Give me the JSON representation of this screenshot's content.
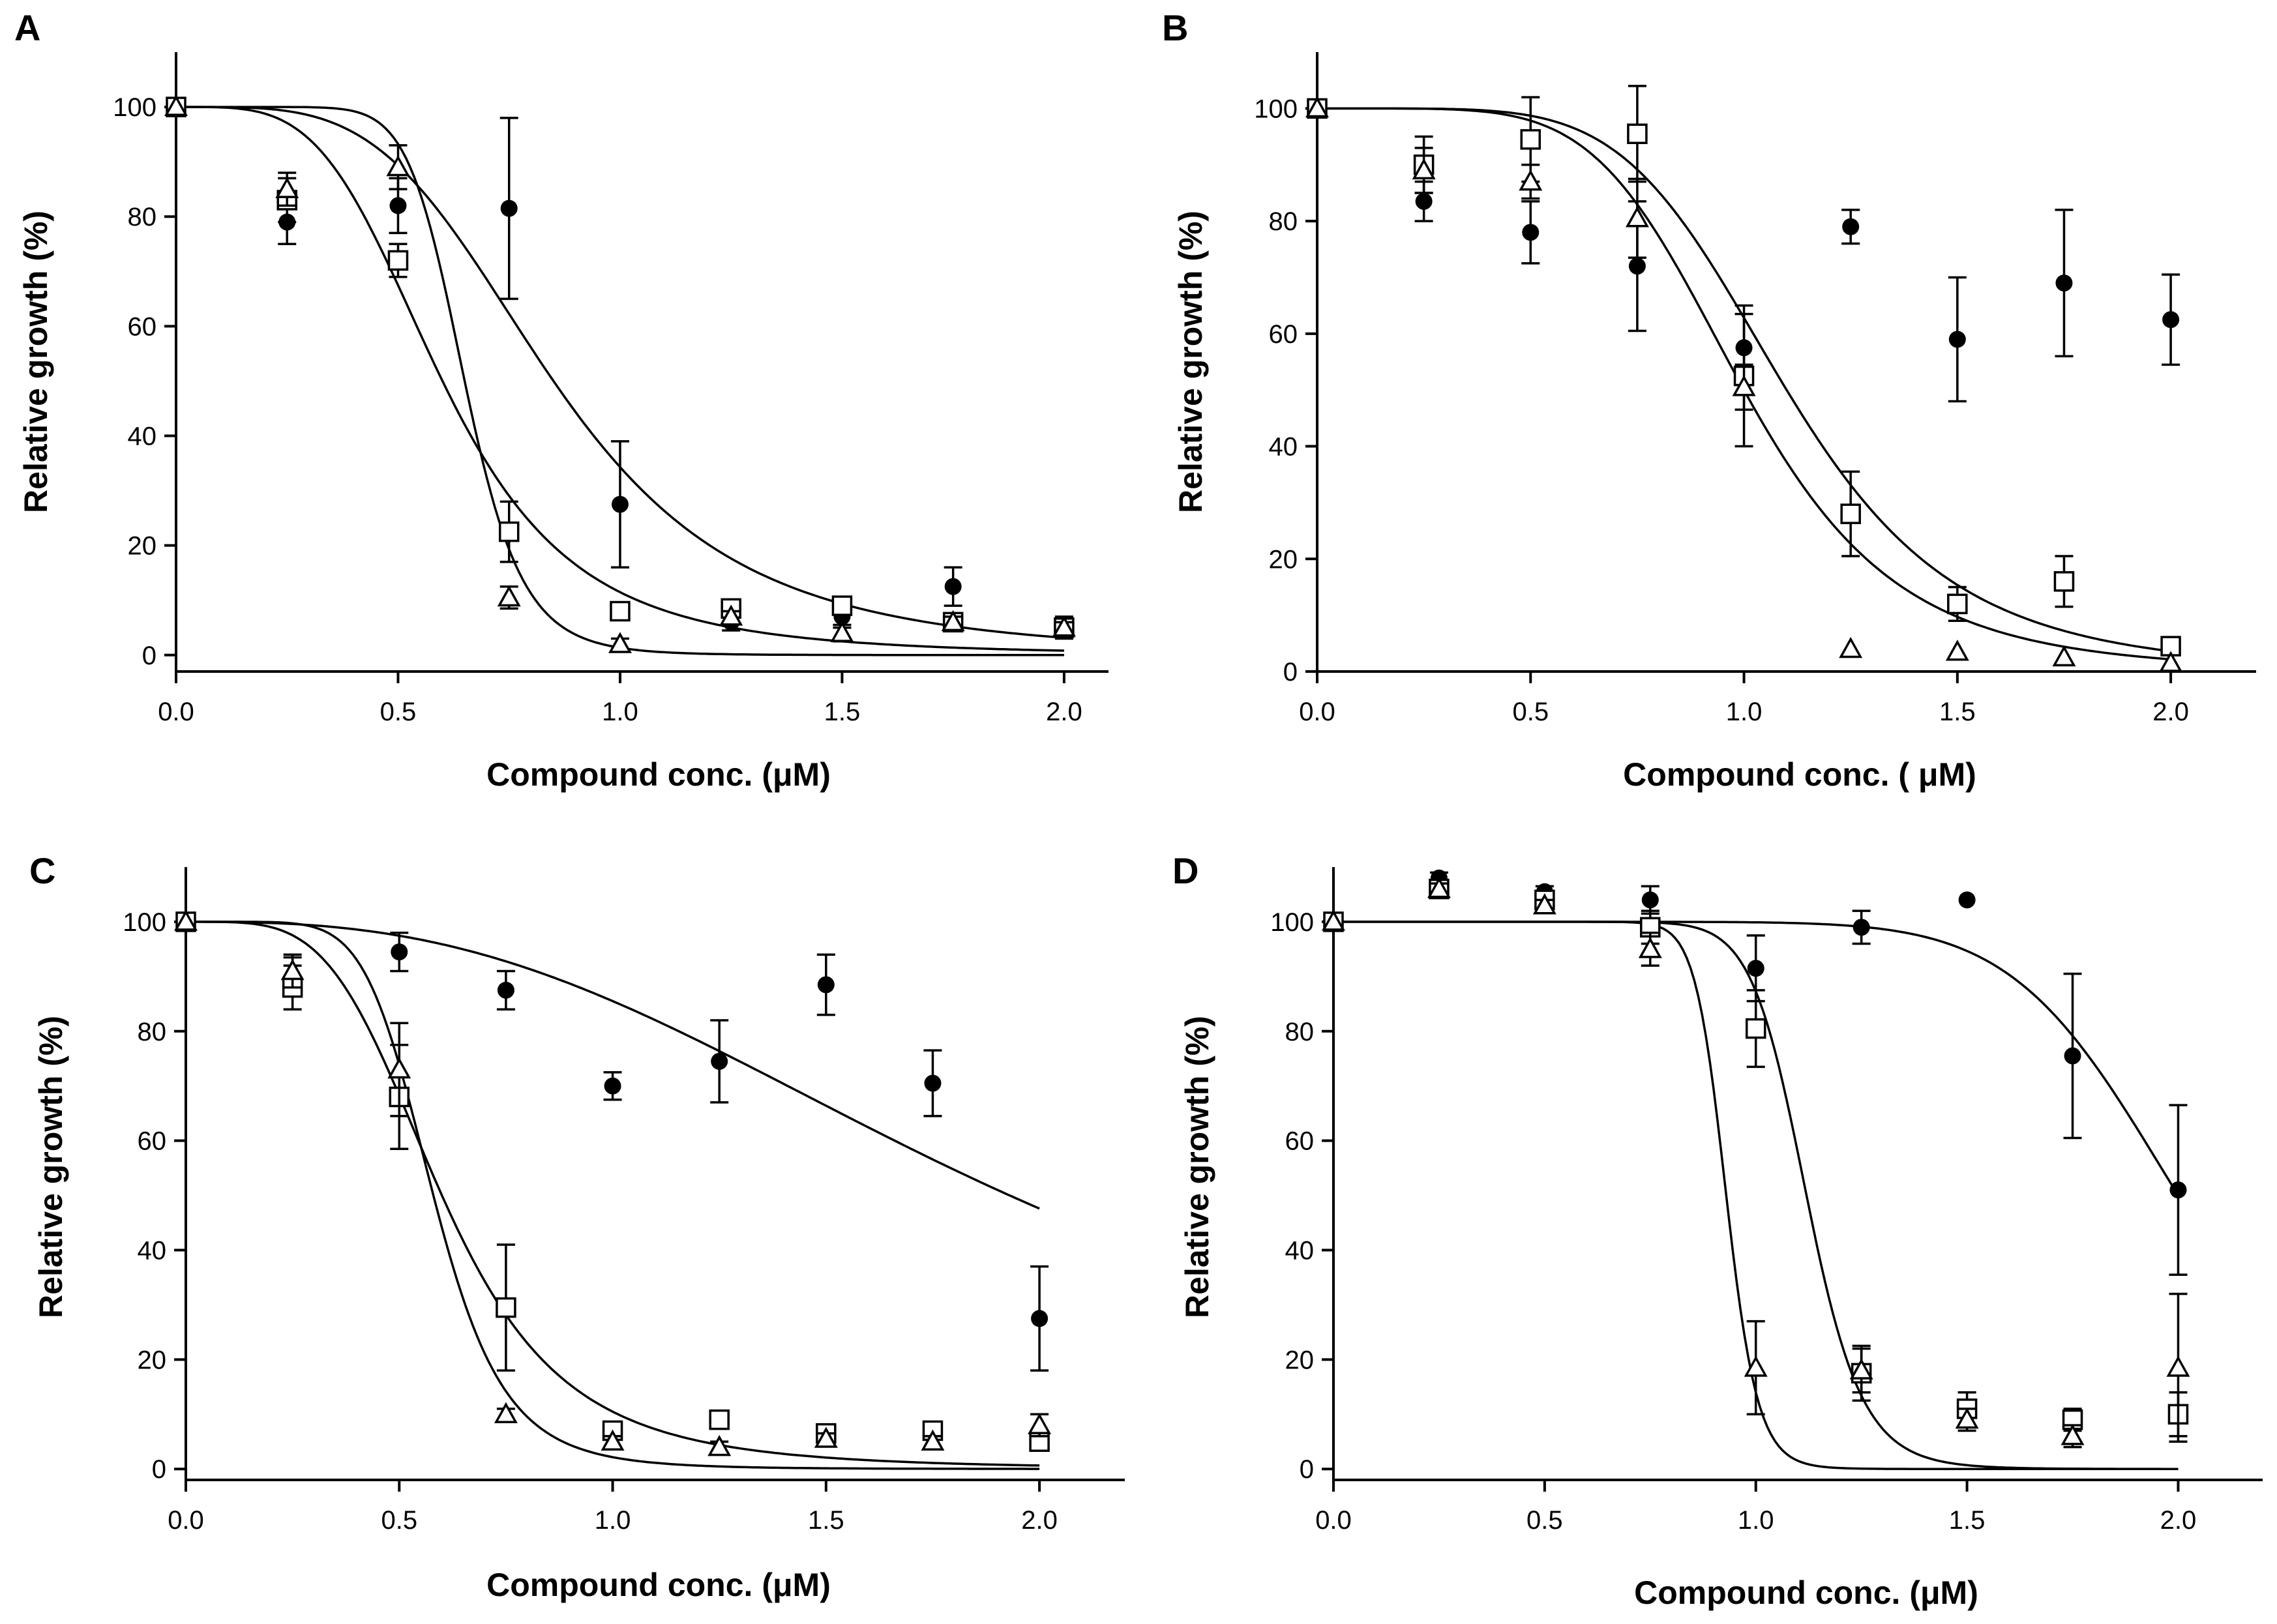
{
  "figure": {
    "background": "#ffffff",
    "ink": "#000000"
  },
  "chart_data": [
    {
      "panel": "A",
      "type": "scatter",
      "xlabel": "Compound conc. (μM)",
      "ylabel": "Relative growth (%)",
      "xlim": [
        0.0,
        2.1
      ],
      "ylim": [
        -3,
        110
      ],
      "xticks": [
        "0.0",
        "0.5",
        "1.0",
        "1.5",
        "2.0"
      ],
      "yticks": [
        "0",
        "20",
        "40",
        "60",
        "80",
        "100"
      ],
      "series": [
        {
          "name": "filled circle",
          "marker": "circle-filled",
          "x": [
            0,
            0.25,
            0.5,
            0.75,
            1.0,
            1.25,
            1.5,
            1.75,
            2.0
          ],
          "y": [
            100,
            79,
            82,
            81.5,
            27.5,
            6,
            7,
            12.5,
            5
          ],
          "err": [
            0,
            4,
            5,
            16.5,
            11.5,
            1.5,
            2,
            3.5,
            2
          ],
          "fit": {
            "ic50": 0.85,
            "hill": 4.0
          }
        },
        {
          "name": "open square",
          "marker": "square-open",
          "x": [
            0,
            0.25,
            0.5,
            0.75,
            1.0,
            1.25,
            1.5,
            1.75,
            2.0
          ],
          "y": [
            100,
            83,
            72,
            22.5,
            8,
            8.5,
            9,
            6,
            5
          ],
          "err": [
            0,
            4,
            3,
            5.5,
            1.5,
            1.5,
            1.5,
            1.5,
            1.5
          ],
          "fit": {
            "ic50": 0.6,
            "hill": 4.0
          }
        },
        {
          "name": "open triangle",
          "marker": "triangle-open",
          "x": [
            0,
            0.25,
            0.5,
            0.75,
            1.0,
            1.25,
            1.5,
            1.75,
            2.0
          ],
          "y": [
            100,
            85,
            89,
            10.5,
            2,
            7,
            4,
            6,
            5
          ],
          "err": [
            0,
            3,
            4,
            2,
            1,
            1,
            1.5,
            1,
            1
          ],
          "fit": {
            "ic50": 0.65,
            "hill": 10.0
          }
        }
      ]
    },
    {
      "panel": "B",
      "type": "scatter",
      "xlabel": "Compound conc. ( μM)",
      "ylabel": "Relative growth (%)",
      "xlim": [
        0.0,
        2.2
      ],
      "ylim": [
        0,
        110
      ],
      "xticks": [
        "0.0",
        "0.5",
        "1.0",
        "1.5",
        "2.0"
      ],
      "yticks": [
        "0",
        "20",
        "40",
        "60",
        "80",
        "100"
      ],
      "series": [
        {
          "name": "filled circle",
          "marker": "circle-filled",
          "x": [
            0,
            0.25,
            0.5,
            0.75,
            1.0,
            1.25,
            1.5,
            1.75,
            2.0
          ],
          "y": [
            100,
            83.5,
            78,
            72,
            57.5,
            79,
            59,
            69,
            62.5
          ],
          "err": [
            0,
            3.5,
            5.5,
            11.5,
            6,
            3,
            11,
            13,
            8
          ],
          "fit": null
        },
        {
          "name": "open square",
          "marker": "square-open",
          "x": [
            0,
            0.25,
            0.5,
            0.75,
            1.0,
            1.25,
            1.5,
            1.75,
            2.0
          ],
          "y": [
            100,
            90,
            94.5,
            95.5,
            52.5,
            28,
            12,
            16,
            4.5
          ],
          "err": [
            0,
            5,
            7.5,
            8.5,
            12.5,
            7.5,
            3,
            4.5,
            1
          ],
          "fit": {
            "ic50": 1.1,
            "hill": 5.5
          }
        },
        {
          "name": "open triangle",
          "marker": "triangle-open",
          "x": [
            0,
            0.25,
            0.5,
            0.75,
            1.0,
            1.25,
            1.5,
            1.75,
            2.0
          ],
          "y": [
            100,
            89,
            87,
            80.5,
            50.5,
            4,
            3.5,
            2.5,
            1.5
          ],
          "err": [
            0,
            4,
            3,
            7,
            4,
            0.5,
            0.5,
            0.5,
            0.5
          ],
          "fit": {
            "ic50": 1.0,
            "hill": 5.5
          }
        }
      ]
    },
    {
      "panel": "C",
      "type": "scatter",
      "xlabel": "Compound conc. (μM)",
      "ylabel": "Relative growth (%)",
      "xlim": [
        0.0,
        2.2
      ],
      "ylim": [
        -2,
        110
      ],
      "xticks": [
        "0.0",
        "0.5",
        "1.0",
        "1.5",
        "2.0"
      ],
      "yticks": [
        "0",
        "20",
        "40",
        "60",
        "80",
        "100"
      ],
      "series": [
        {
          "name": "filled circle",
          "marker": "circle-filled",
          "x": [
            0,
            0.25,
            0.5,
            0.75,
            1.0,
            1.25,
            1.5,
            1.75,
            2.0
          ],
          "y": [
            100,
            90,
            94.5,
            87.5,
            70,
            74.5,
            88.5,
            70.5,
            27.5
          ],
          "err": [
            0,
            3.5,
            3.5,
            3.5,
            2.5,
            7.5,
            5.5,
            6,
            9.5
          ],
          "fit": {
            "ic50": 1.93,
            "hill": 2.7
          }
        },
        {
          "name": "open square",
          "marker": "square-open",
          "x": [
            0,
            0.25,
            0.5,
            0.75,
            1.0,
            1.25,
            1.5,
            1.75,
            2.0
          ],
          "y": [
            100,
            88,
            68,
            29.5,
            7,
            9,
            6.5,
            7,
            5
          ],
          "err": [
            0,
            4,
            9.5,
            11.5,
            1.5,
            1.5,
            1,
            1,
            1
          ],
          "fit": {
            "ic50": 0.6,
            "hill": 4.2
          }
        },
        {
          "name": "open triangle",
          "marker": "triangle-open",
          "x": [
            0,
            0.25,
            0.5,
            0.75,
            1.0,
            1.25,
            1.5,
            1.75,
            2.0
          ],
          "y": [
            100,
            91,
            73,
            10,
            5,
            4,
            5.5,
            5,
            8
          ],
          "err": [
            0,
            3,
            8.5,
            1,
            1,
            1,
            1,
            1,
            2
          ],
          "fit": {
            "ic50": 0.58,
            "hill": 7.0
          }
        }
      ]
    },
    {
      "panel": "D",
      "type": "scatter",
      "xlabel": "Compound conc. (μM)",
      "ylabel": "Relative growth (%)",
      "xlim": [
        0.0,
        2.2
      ],
      "ylim": [
        -2,
        110
      ],
      "xticks": [
        "0.0",
        "0.5",
        "1.0",
        "1.5",
        "2.0"
      ],
      "yticks": [
        "0",
        "20",
        "40",
        "60",
        "80",
        "100"
      ],
      "series": [
        {
          "name": "filled circle",
          "marker": "circle-filled",
          "x": [
            0,
            0.25,
            0.5,
            0.75,
            1.0,
            1.25,
            1.5,
            1.75,
            2.0
          ],
          "y": [
            100,
            108,
            105.5,
            104,
            91.5,
            99,
            104,
            75.5,
            51
          ],
          "err": [
            0,
            1,
            1,
            2.5,
            6,
            3,
            0,
            15,
            15.5
          ],
          "fit": {
            "ic50": 2.0,
            "hill": 10.0
          }
        },
        {
          "name": "open square",
          "marker": "square-open",
          "x": [
            0,
            0.25,
            0.5,
            0.75,
            1.0,
            1.25,
            1.5,
            1.75,
            2.0
          ],
          "y": [
            100,
            106,
            104,
            99,
            80.5,
            17.5,
            11,
            9,
            10
          ],
          "err": [
            0,
            1,
            1,
            3,
            7,
            5,
            3,
            2,
            4
          ],
          "fit": {
            "ic50": 1.12,
            "hill": 17.0
          }
        },
        {
          "name": "open triangle",
          "marker": "triangle-open",
          "x": [
            0,
            0.25,
            0.5,
            0.75,
            1.0,
            1.25,
            1.5,
            1.75,
            2.0
          ],
          "y": [
            100,
            106,
            103,
            95,
            18.5,
            18,
            9,
            6,
            18.5
          ],
          "err": [
            0,
            1,
            1,
            3,
            8.5,
            4,
            2,
            2,
            13.5
          ],
          "fit": {
            "ic50": 0.93,
            "hill": 25.0
          }
        }
      ]
    }
  ]
}
